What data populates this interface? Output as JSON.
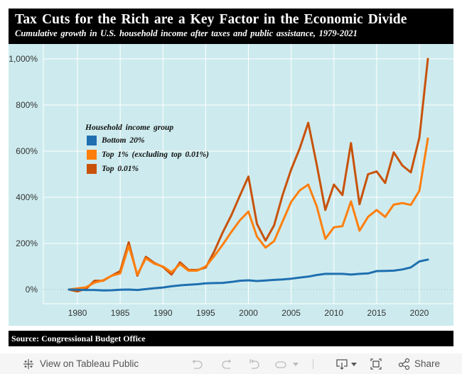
{
  "header": {
    "title": "Tax Cuts for the Rich are a Key Factor in the Economic Divide",
    "subtitle": "Cumulative growth in U.S. household income after taxes and public assistance, 1979-2021"
  },
  "source": "Source: Congressional Budget Office",
  "toolbar": {
    "view_label": "View on Tableau Public",
    "share_label": "Share",
    "icons": [
      "tableau-logo-icon",
      "undo-icon",
      "redo-icon",
      "revert-icon",
      "refresh-icon",
      "download-icon",
      "fullscreen-icon",
      "share-icon"
    ]
  },
  "colors": {
    "background": "#cdebee",
    "bottom20": "#1f6fb0",
    "top1": "#ff7f0e",
    "top001": "#c8520a"
  },
  "chart_data": {
    "type": "line",
    "title": "Tax Cuts for the Rich are a Key Factor in the Economic Divide",
    "subtitle": "Cumulative growth in U.S. household income after taxes and public assistance, 1979-2021",
    "xlabel": "",
    "ylabel": "",
    "xlim": [
      1976,
      2024
    ],
    "ylim": [
      -60,
      1050
    ],
    "x_ticks": [
      1980,
      1985,
      1990,
      1995,
      2000,
      2005,
      2010,
      2015,
      2020
    ],
    "y_ticks": [
      0,
      200,
      400,
      600,
      800,
      1000
    ],
    "y_tick_labels": [
      "0%",
      "200%",
      "400%",
      "600%",
      "800%",
      "1,000%"
    ],
    "grid": true,
    "legend_title": "Household income group",
    "legend_position": "upper-left",
    "x": [
      1979,
      1980,
      1981,
      1982,
      1983,
      1984,
      1985,
      1986,
      1987,
      1988,
      1989,
      1990,
      1991,
      1992,
      1993,
      1994,
      1995,
      1996,
      1997,
      1998,
      1999,
      2000,
      2001,
      2002,
      2003,
      2004,
      2005,
      2006,
      2007,
      2008,
      2009,
      2010,
      2011,
      2012,
      2013,
      2014,
      2015,
      2016,
      2017,
      2018,
      2019,
      2020,
      2021
    ],
    "series": [
      {
        "name": "Bottom 20%",
        "color": "#1f6fb0",
        "values": [
          0,
          -1,
          -2,
          -2,
          -4,
          -3,
          -1,
          0,
          -2,
          2,
          6,
          9,
          14,
          18,
          21,
          23,
          27,
          28,
          29,
          33,
          38,
          40,
          37,
          39,
          42,
          44,
          47,
          52,
          56,
          63,
          68,
          68,
          68,
          65,
          68,
          70,
          80,
          81,
          82,
          87,
          96,
          122,
          130
        ]
      },
      {
        "name": "Top 1% (excluding top 0.01%)",
        "color": "#ff7f0e",
        "values": [
          0,
          5,
          10,
          30,
          40,
          60,
          70,
          190,
          65,
          135,
          112,
          100,
          75,
          110,
          82,
          82,
          100,
          145,
          195,
          250,
          300,
          338,
          230,
          182,
          210,
          295,
          380,
          430,
          455,
          360,
          220,
          270,
          275,
          382,
          255,
          315,
          345,
          315,
          368,
          375,
          367,
          428,
          655
        ]
      },
      {
        "name": "Top 0.01%",
        "color": "#c8520a",
        "values": [
          0,
          -8,
          3,
          38,
          38,
          60,
          80,
          205,
          60,
          142,
          115,
          98,
          65,
          118,
          85,
          85,
          95,
          165,
          248,
          322,
          407,
          490,
          285,
          212,
          278,
          410,
          520,
          612,
          723,
          540,
          345,
          455,
          410,
          635,
          370,
          500,
          512,
          462,
          595,
          538,
          508,
          658,
          1000
        ]
      }
    ]
  }
}
